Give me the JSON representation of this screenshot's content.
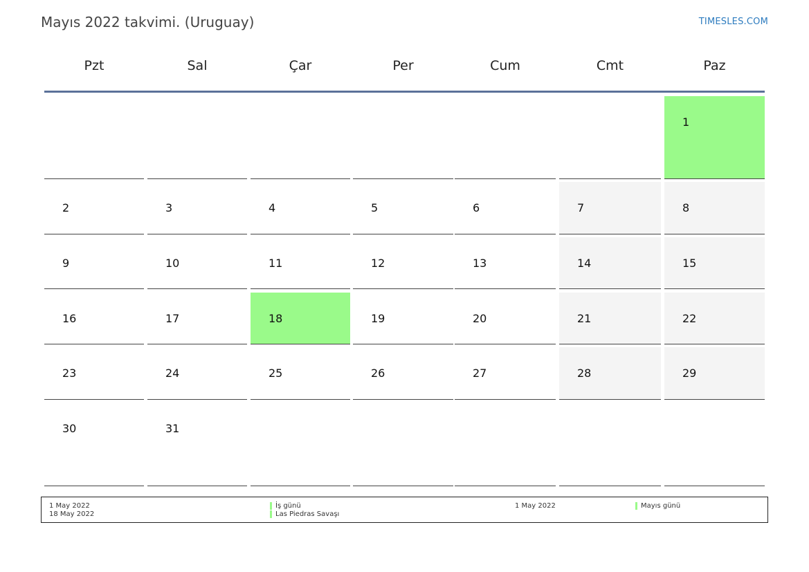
{
  "header": {
    "title": "Mayıs 2022 takvimi. (Uruguay)",
    "site": "TIMESLES.COM"
  },
  "weekdays": [
    "Pzt",
    "Sal",
    "Çar",
    "Per",
    "Cum",
    "Cmt",
    "Paz"
  ],
  "colors": {
    "holiday": "#9afa8a",
    "weekend": "#f4f4f4",
    "rule": "#5b7199"
  },
  "weeks": [
    [
      {
        "day": "",
        "type": "empty"
      },
      {
        "day": "",
        "type": "empty"
      },
      {
        "day": "",
        "type": "empty"
      },
      {
        "day": "",
        "type": "empty"
      },
      {
        "day": "",
        "type": "empty"
      },
      {
        "day": "",
        "type": "empty"
      },
      {
        "day": "1",
        "type": "holiday"
      }
    ],
    [
      {
        "day": "2",
        "type": "normal"
      },
      {
        "day": "3",
        "type": "normal"
      },
      {
        "day": "4",
        "type": "normal"
      },
      {
        "day": "5",
        "type": "normal"
      },
      {
        "day": "6",
        "type": "normal"
      },
      {
        "day": "7",
        "type": "weekend"
      },
      {
        "day": "8",
        "type": "weekend"
      }
    ],
    [
      {
        "day": "9",
        "type": "normal"
      },
      {
        "day": "10",
        "type": "normal"
      },
      {
        "day": "11",
        "type": "normal"
      },
      {
        "day": "12",
        "type": "normal"
      },
      {
        "day": "13",
        "type": "normal"
      },
      {
        "day": "14",
        "type": "weekend"
      },
      {
        "day": "15",
        "type": "weekend"
      }
    ],
    [
      {
        "day": "16",
        "type": "normal"
      },
      {
        "day": "17",
        "type": "normal"
      },
      {
        "day": "18",
        "type": "holiday"
      },
      {
        "day": "19",
        "type": "normal"
      },
      {
        "day": "20",
        "type": "normal"
      },
      {
        "day": "21",
        "type": "weekend"
      },
      {
        "day": "22",
        "type": "weekend"
      }
    ],
    [
      {
        "day": "23",
        "type": "normal"
      },
      {
        "day": "24",
        "type": "normal"
      },
      {
        "day": "25",
        "type": "normal"
      },
      {
        "day": "26",
        "type": "normal"
      },
      {
        "day": "27",
        "type": "normal"
      },
      {
        "day": "28",
        "type": "weekend"
      },
      {
        "day": "29",
        "type": "weekend"
      }
    ],
    [
      {
        "day": "30",
        "type": "normal"
      },
      {
        "day": "31",
        "type": "normal"
      },
      {
        "day": "",
        "type": "empty"
      },
      {
        "day": "",
        "type": "empty"
      },
      {
        "day": "",
        "type": "empty"
      },
      {
        "day": "",
        "type": "empty"
      },
      {
        "day": "",
        "type": "empty"
      }
    ]
  ],
  "legend": {
    "left": {
      "dates": [
        "1 May 2022",
        "18 May 2022"
      ],
      "names": [
        "İş günü",
        "Las Piedras Savaşı"
      ]
    },
    "right": {
      "dates": [
        "1 May 2022"
      ],
      "names": [
        "Mayıs günü"
      ]
    }
  }
}
